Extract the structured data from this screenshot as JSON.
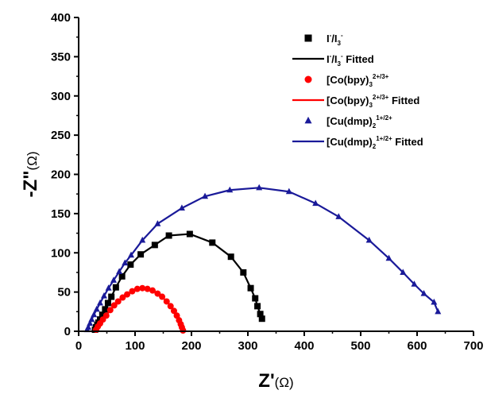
{
  "chart_data": {
    "type": "scatter",
    "xlabel": "Z'(Ω)",
    "ylabel": "-Z\"(Ω)",
    "xlim": [
      0,
      700
    ],
    "ylim": [
      0,
      400
    ],
    "x_ticks": [
      0,
      100,
      200,
      300,
      400,
      500,
      600,
      700
    ],
    "y_ticks": [
      0,
      50,
      100,
      150,
      200,
      250,
      300,
      350,
      400
    ],
    "grid": false,
    "legend_position": "top-right",
    "series": [
      {
        "name": "I⁻/I₃⁻",
        "fit_name": "I⁻/I₃⁻ Fitted",
        "color": "#000000",
        "marker": "square",
        "x": [
          29,
          31,
          33,
          35,
          38,
          42,
          47,
          52,
          58,
          66,
          77,
          92,
          110,
          135,
          160,
          197,
          237,
          270,
          292,
          305,
          313,
          317,
          322,
          325
        ],
        "y": [
          2,
          5,
          8,
          11,
          15,
          21,
          28,
          36,
          44,
          56,
          70,
          85,
          98,
          110,
          122,
          124,
          113,
          95,
          75,
          55,
          42,
          32,
          22,
          16
        ]
      },
      {
        "name": "[Co(bpy)₃]²⁺ᐟ³⁺",
        "fit_name": "[Co(bpy)₃]²⁺ᐟ³⁺ Fitted",
        "color": "#ff0000",
        "marker": "circle",
        "x": [
          31,
          34,
          38,
          43,
          49,
          56,
          63,
          70,
          78,
          86,
          95,
          104,
          113,
          122,
          131,
          140,
          148,
          156,
          163,
          169,
          174,
          178,
          181,
          183,
          185
        ],
        "y": [
          2,
          6,
          10,
          15,
          20,
          27,
          33,
          38,
          43,
          47,
          51,
          54,
          55,
          54,
          52,
          48,
          44,
          38,
          32,
          26,
          20,
          14,
          9,
          5,
          1
        ]
      },
      {
        "name": "[Cu(dmp)₂]¹⁺ᐟ²⁺",
        "fit_name": "[Cu(dmp)₂]¹⁺ᐟ²⁺ Fitted",
        "color": "#1a1a99",
        "marker": "triangle",
        "x": [
          15,
          17,
          20,
          23,
          27,
          32,
          38,
          45,
          53,
          62,
          72,
          82,
          93,
          113,
          140,
          183,
          224,
          268,
          320,
          373,
          420,
          461,
          515,
          550,
          575,
          595,
          612,
          630,
          637
        ],
        "y": [
          2,
          5,
          10,
          15,
          21,
          28,
          36,
          45,
          55,
          65,
          76,
          87,
          97,
          116,
          137,
          157,
          172,
          180,
          183,
          178,
          163,
          146,
          116,
          93,
          75,
          60,
          48,
          37,
          25
        ]
      }
    ],
    "legend": [
      {
        "base": "I",
        "sup": "-",
        "mid": "/I",
        "sub": "3",
        "sup2": "-",
        "suffix": ""
      },
      {
        "base": "I",
        "sup": "-",
        "mid": "/I",
        "sub": "3",
        "sup2": "-",
        "suffix": " Fitted"
      },
      {
        "base": "[Co(bpy)",
        "sup": "",
        "mid": "",
        "sub": "3",
        "sup2": "2+/3+",
        "suffix": ""
      },
      {
        "base": "[Co(bpy)",
        "sup": "",
        "mid": "",
        "sub": "3",
        "sup2": "2+/3+",
        "suffix": " Fitted"
      },
      {
        "base": "[Cu(dmp)",
        "sup": "",
        "mid": "",
        "sub": "2",
        "sup2": "1+/2+",
        "suffix": ""
      },
      {
        "base": "[Cu(dmp)",
        "sup": "",
        "mid": "",
        "sub": "2",
        "sup2": "1+/2+",
        "suffix": " Fitted"
      }
    ]
  }
}
